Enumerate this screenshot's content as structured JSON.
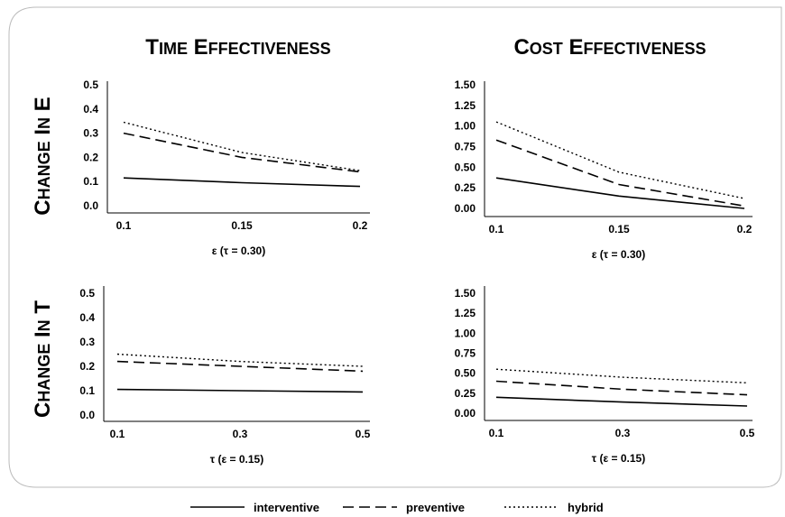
{
  "column_titles": [
    "Time effectiveness",
    "Cost effectiveness"
  ],
  "row_titles": [
    "Change in ε",
    "Change in τ"
  ],
  "legend": [
    {
      "name": "interventive",
      "style": "solid"
    },
    {
      "name": "preventive",
      "style": "dashed"
    },
    {
      "name": "hybrid",
      "style": "dotted"
    }
  ],
  "chart_data": [
    {
      "type": "line",
      "xlabel": "ε (τ = 0.30)",
      "x": [
        0.1,
        0.15,
        0.2
      ],
      "x_ticks": [
        "0.1",
        "0.15",
        "0.2"
      ],
      "ylim": [
        0,
        0.5
      ],
      "y_ticks": [
        "0.0",
        "0.1",
        "0.2",
        "0.3",
        "0.4",
        "0.5"
      ],
      "series": [
        {
          "name": "interventive",
          "values": [
            0.115,
            0.095,
            0.08
          ]
        },
        {
          "name": "preventive",
          "values": [
            0.3,
            0.2,
            0.14
          ]
        },
        {
          "name": "hybrid",
          "values": [
            0.345,
            0.22,
            0.145
          ]
        }
      ]
    },
    {
      "type": "line",
      "xlabel": "ε (τ = 0.30)",
      "x": [
        0.1,
        0.15,
        0.2
      ],
      "x_ticks": [
        "0.1",
        "0.15",
        "0.2"
      ],
      "ylim": [
        0,
        1.5
      ],
      "y_ticks": [
        "0.00",
        "0.25",
        "0.50",
        "0.75",
        "1.00",
        "1.25",
        "1.50"
      ],
      "series": [
        {
          "name": "interventive",
          "values": [
            0.37,
            0.15,
            0.0
          ]
        },
        {
          "name": "preventive",
          "values": [
            0.83,
            0.29,
            0.03
          ]
        },
        {
          "name": "hybrid",
          "values": [
            1.05,
            0.44,
            0.12
          ]
        }
      ]
    },
    {
      "type": "line",
      "xlabel": "τ (ε = 0.15)",
      "x": [
        0.1,
        0.3,
        0.5
      ],
      "x_ticks": [
        "0.1",
        "0.3",
        "0.5"
      ],
      "ylim": [
        0,
        0.5
      ],
      "y_ticks": [
        "0.0",
        "0.1",
        "0.2",
        "0.3",
        "0.4",
        "0.5"
      ],
      "series": [
        {
          "name": "interventive",
          "values": [
            0.105,
            0.1,
            0.095
          ]
        },
        {
          "name": "preventive",
          "values": [
            0.22,
            0.2,
            0.18
          ]
        },
        {
          "name": "hybrid",
          "values": [
            0.25,
            0.22,
            0.2
          ]
        }
      ]
    },
    {
      "type": "line",
      "xlabel": "τ (ε = 0.15)",
      "x": [
        0.1,
        0.3,
        0.5
      ],
      "x_ticks": [
        "0.1",
        "0.3",
        "0.5"
      ],
      "ylim": [
        0,
        1.5
      ],
      "y_ticks": [
        "0.00",
        "0.25",
        "0.50",
        "0.75",
        "1.00",
        "1.25",
        "1.50"
      ],
      "series": [
        {
          "name": "interventive",
          "values": [
            0.2,
            0.14,
            0.09
          ]
        },
        {
          "name": "preventive",
          "values": [
            0.4,
            0.3,
            0.23
          ]
        },
        {
          "name": "hybrid",
          "values": [
            0.55,
            0.45,
            0.38
          ]
        }
      ]
    }
  ]
}
